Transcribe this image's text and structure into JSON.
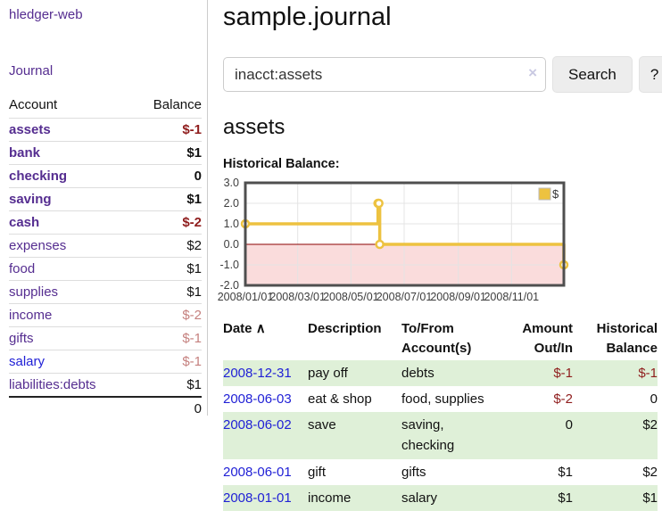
{
  "app": {
    "brand": "hledger-web",
    "nav_journal": "Journal"
  },
  "sidebar": {
    "account_header": "Account",
    "balance_header": "Balance",
    "accounts": [
      {
        "name": "assets",
        "balance": "$-1",
        "indent": 0,
        "bold": true,
        "balance_style": "neg-strong"
      },
      {
        "name": "bank",
        "balance": "$1",
        "indent": 1,
        "bold": true,
        "balance_style": "pos"
      },
      {
        "name": "checking",
        "balance": "0",
        "indent": 2,
        "bold": true,
        "balance_style": "pos"
      },
      {
        "name": "saving",
        "balance": "$1",
        "indent": 2,
        "bold": true,
        "balance_style": "pos"
      },
      {
        "name": "cash",
        "balance": "$-2",
        "indent": 1,
        "bold": true,
        "balance_style": "neg-strong"
      },
      {
        "name": "expenses",
        "balance": "$2",
        "indent": 0,
        "bold": false,
        "balance_style": "pos"
      },
      {
        "name": "food",
        "balance": "$1",
        "indent": 1,
        "bold": false,
        "balance_style": "pos"
      },
      {
        "name": "supplies",
        "balance": "$1",
        "indent": 1,
        "bold": false,
        "balance_style": "pos"
      },
      {
        "name": "income",
        "balance": "$-2",
        "indent": 0,
        "bold": false,
        "balance_style": "neg-soft"
      },
      {
        "name": "gifts",
        "balance": "$-1",
        "indent": 1,
        "bold": false,
        "balance_style": "neg-soft"
      },
      {
        "name": "salary",
        "balance": "$-1",
        "indent": 1,
        "bold": false,
        "balance_style": "neg-soft",
        "link_style": "unvisited"
      },
      {
        "name": "liabilities:debts",
        "balance": "$1",
        "indent": 0,
        "bold": false,
        "balance_style": "pos"
      }
    ],
    "total": "0"
  },
  "main": {
    "title": "sample.journal",
    "search": {
      "value": "inacct:assets",
      "clear_icon": "×",
      "search_button": "Search",
      "help_button": "?"
    },
    "account_title": "assets",
    "chart_title": "Historical Balance:"
  },
  "chart_data": {
    "type": "line",
    "title": "Historical Balance",
    "step": true,
    "x": [
      "2008-01-01",
      "2008-06-01",
      "2008-06-02",
      "2008-06-03",
      "2008-12-31"
    ],
    "series": [
      {
        "name": "$",
        "values": [
          1,
          2,
          2,
          0,
          -1
        ],
        "color": "#edc240"
      }
    ],
    "xlim": [
      "2008-01-01",
      "2008-12-31"
    ],
    "ylim": [
      -2,
      3
    ],
    "ytick_labels": [
      "3.0",
      "2.0",
      "1.0",
      "0.0",
      "-1.0",
      "-2.0"
    ],
    "xtick_labels": [
      "2008/01/01",
      "2008/03/01",
      "2008/05/01",
      "2008/07/01",
      "2008/09/01",
      "2008/11/01"
    ],
    "xtick_dates": [
      "2008-01-01",
      "2008-03-01",
      "2008-05-01",
      "2008-07-01",
      "2008-09-01",
      "2008-11-01"
    ],
    "legend_position": "top-right",
    "grid": true,
    "negative_region_color": "#fadcdc",
    "zero_line_color": "#8b0000",
    "grid_color": "#e4e4e4",
    "border_color": "#4f4f4f"
  },
  "register": {
    "headers": {
      "date": "Date",
      "sort_icon": "∧",
      "description": "Description",
      "accounts": "To/From Account(s)",
      "amount": "Amount Out/In",
      "balance": "Historical Balance"
    },
    "rows": [
      {
        "date": "2008-12-31",
        "description": "pay off",
        "accounts": "debts",
        "amount": "$-1",
        "amount_neg": true,
        "balance": "$-1",
        "balance_neg": true
      },
      {
        "date": "2008-06-03",
        "description": "eat & shop",
        "accounts": "food, supplies",
        "amount": "$-2",
        "amount_neg": true,
        "balance": "0",
        "balance_neg": false
      },
      {
        "date": "2008-06-02",
        "description": "save",
        "accounts": "saving, checking",
        "amount": "0",
        "amount_neg": false,
        "balance": "$2",
        "balance_neg": false
      },
      {
        "date": "2008-06-01",
        "description": "gift",
        "accounts": "gifts",
        "amount": "$1",
        "amount_neg": false,
        "balance": "$2",
        "balance_neg": false
      },
      {
        "date": "2008-01-01",
        "description": "income",
        "accounts": "salary",
        "amount": "$1",
        "amount_neg": false,
        "balance": "$1",
        "balance_neg": false
      }
    ]
  },
  "colors": {
    "link_purple": "#552d90",
    "link_blue": "#2121d6",
    "neg_strong": "#8f1d1d",
    "neg_soft": "#c5807e",
    "row_green": "#dff0d8",
    "series_yellow": "#edc240"
  }
}
